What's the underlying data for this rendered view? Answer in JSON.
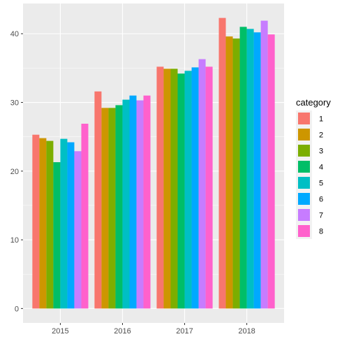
{
  "chart_data": {
    "type": "bar",
    "title": "",
    "xlabel": "",
    "ylabel": "",
    "categories": [
      "2015",
      "2016",
      "2017",
      "2018"
    ],
    "ylim": [
      -2.1,
      44.4
    ],
    "yticks": [
      0,
      10,
      20,
      30,
      40
    ],
    "grid": true,
    "legend": {
      "title": "category",
      "position": "right"
    },
    "series": [
      {
        "name": "1",
        "color": "#F8766D",
        "values": [
          25.3,
          31.6,
          35.2,
          42.3
        ]
      },
      {
        "name": "2",
        "color": "#CD9600",
        "values": [
          24.8,
          29.2,
          34.9,
          39.6
        ]
      },
      {
        "name": "3",
        "color": "#7CAE00",
        "values": [
          24.4,
          29.2,
          34.9,
          39.3
        ]
      },
      {
        "name": "4",
        "color": "#00BE67",
        "values": [
          21.3,
          29.6,
          34.2,
          41.0
        ]
      },
      {
        "name": "5",
        "color": "#00BFC4",
        "values": [
          24.7,
          30.4,
          34.6,
          40.7
        ]
      },
      {
        "name": "6",
        "color": "#00A9FF",
        "values": [
          24.2,
          31.0,
          35.1,
          40.2
        ]
      },
      {
        "name": "7",
        "color": "#C77CFF",
        "values": [
          22.9,
          30.3,
          36.3,
          41.9
        ]
      },
      {
        "name": "8",
        "color": "#FF61CC",
        "values": [
          26.9,
          31.0,
          35.2,
          39.9
        ]
      }
    ]
  }
}
